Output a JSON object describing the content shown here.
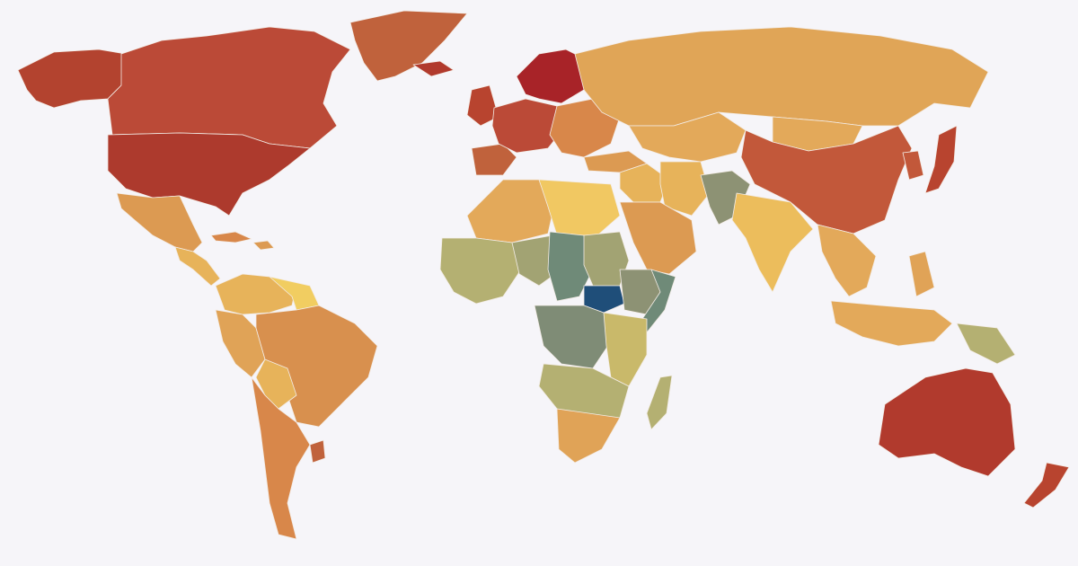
{
  "map": {
    "projection": "equirectangular-world",
    "color_scale": {
      "type": "diverging",
      "stops": [
        "#1f4e79",
        "#6f8a78",
        "#b4b072",
        "#f1cd61",
        "#e3a557",
        "#d8874a",
        "#c85d3a",
        "#b13a2d",
        "#a82328"
      ],
      "low_color": "#1f4e79",
      "high_color": "#a82328"
    },
    "background": "#f6f5f9",
    "border_color": "#f3ece6",
    "regions": [
      {
        "id": "canada",
        "color": "#bb4a37"
      },
      {
        "id": "alaska",
        "color": "#b3432f"
      },
      {
        "id": "usa",
        "color": "#ad3a2d"
      },
      {
        "id": "greenland",
        "color": "#c0623c"
      },
      {
        "id": "mexico",
        "color": "#dc9a52"
      },
      {
        "id": "central-america",
        "color": "#e7b35a"
      },
      {
        "id": "cuba",
        "color": "#d8874a"
      },
      {
        "id": "caribbean",
        "color": "#dc9a52"
      },
      {
        "id": "colombia-venezuela",
        "color": "#e7b35a"
      },
      {
        "id": "guianas",
        "color": "#f1cd61"
      },
      {
        "id": "brazil",
        "color": "#d8904e"
      },
      {
        "id": "peru-ecuador",
        "color": "#e0a357"
      },
      {
        "id": "bolivia",
        "color": "#e7b35a"
      },
      {
        "id": "argentina-chile",
        "color": "#d8874a"
      },
      {
        "id": "uruguay",
        "color": "#c0623c"
      },
      {
        "id": "uk",
        "color": "#b8442f"
      },
      {
        "id": "iceland",
        "color": "#b13a2d"
      },
      {
        "id": "scandinavia",
        "color": "#a82328"
      },
      {
        "id": "western-europe",
        "color": "#bb4a37"
      },
      {
        "id": "iberia",
        "color": "#c0623c"
      },
      {
        "id": "eastern-europe",
        "color": "#d8874a"
      },
      {
        "id": "russia",
        "color": "#e0a557"
      },
      {
        "id": "central-asia",
        "color": "#e3a95a"
      },
      {
        "id": "turkey",
        "color": "#dc9a52"
      },
      {
        "id": "middle-east",
        "color": "#e7b35a"
      },
      {
        "id": "arabian-peninsula",
        "color": "#dc9a52"
      },
      {
        "id": "iran",
        "color": "#e7b35a"
      },
      {
        "id": "afghanistan-pakistan",
        "color": "#8d9274"
      },
      {
        "id": "india",
        "color": "#ecbd5c"
      },
      {
        "id": "china",
        "color": "#c2583a"
      },
      {
        "id": "mongolia",
        "color": "#e3a95a"
      },
      {
        "id": "korea",
        "color": "#c2583a"
      },
      {
        "id": "japan",
        "color": "#b8442f"
      },
      {
        "id": "southeast-asia",
        "color": "#e3a95a"
      },
      {
        "id": "indonesia",
        "color": "#e3a95a"
      },
      {
        "id": "philippines",
        "color": "#e0a357"
      },
      {
        "id": "papua",
        "color": "#b4b072"
      },
      {
        "id": "australia",
        "color": "#b13a2d"
      },
      {
        "id": "new-zealand",
        "color": "#b8442f"
      },
      {
        "id": "north-africa",
        "color": "#e3a95a"
      },
      {
        "id": "egypt-libya",
        "color": "#f1c862"
      },
      {
        "id": "west-africa",
        "color": "#b4b072"
      },
      {
        "id": "sahel-west",
        "color": "#a2a373"
      },
      {
        "id": "niger-chad",
        "color": "#6f8a78"
      },
      {
        "id": "sudan",
        "color": "#a2a373"
      },
      {
        "id": "south-sudan",
        "color": "#1f4e79"
      },
      {
        "id": "ethiopia",
        "color": "#8d9274"
      },
      {
        "id": "somalia",
        "color": "#6f8a78"
      },
      {
        "id": "central-africa",
        "color": "#7f8c76"
      },
      {
        "id": "east-africa",
        "color": "#c9b96a"
      },
      {
        "id": "southern-africa",
        "color": "#b4b072"
      },
      {
        "id": "south-africa",
        "color": "#e0a357"
      },
      {
        "id": "madagascar",
        "color": "#b4b072"
      }
    ]
  }
}
